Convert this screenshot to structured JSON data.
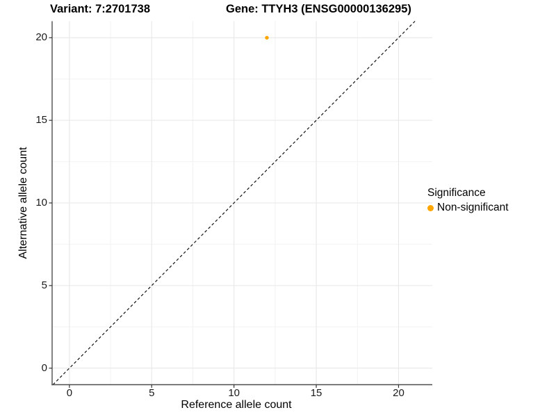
{
  "chart_data": {
    "type": "scatter",
    "titles": {
      "left": "Variant: 7:2701738",
      "right": "Gene: TTYH3 (ENSG00000136295)"
    },
    "xlabel": "Reference allele count",
    "ylabel": "Alternative allele count",
    "xlim": [
      -1.05,
      22.05
    ],
    "ylim": [
      -1,
      21
    ],
    "xticks": [
      {
        "value": 0,
        "label": "0"
      },
      {
        "value": 5,
        "label": "5"
      },
      {
        "value": 10,
        "label": "10"
      },
      {
        "value": 15,
        "label": "15"
      },
      {
        "value": 20,
        "label": "20"
      }
    ],
    "yticks": [
      {
        "value": 0,
        "label": "0"
      },
      {
        "value": 5,
        "label": "5"
      },
      {
        "value": 10,
        "label": "10"
      },
      {
        "value": 15,
        "label": "15"
      },
      {
        "value": 20,
        "label": "20"
      }
    ],
    "minor_ticks": [
      2.5,
      7.5,
      12.5,
      17.5
    ],
    "grid": true,
    "points": [
      {
        "x": 12,
        "y": 20,
        "series": "Non-significant",
        "color": "#FFA500"
      }
    ],
    "reference_line": {
      "type": "identity",
      "slope": 1,
      "intercept": 0,
      "style": "dashed",
      "color": "#111111"
    },
    "legend": {
      "position": "right",
      "title": "Significance",
      "items": [
        {
          "label": "Non-significant",
          "color": "#FFA500"
        }
      ]
    },
    "colors": {
      "background": "#FFFFFF",
      "grid_major": "#E7E7E7",
      "grid_minor": "#F2F2F2",
      "axis_line": "#4D4D4D",
      "tick": "#333333",
      "point": "#FFA500"
    }
  }
}
